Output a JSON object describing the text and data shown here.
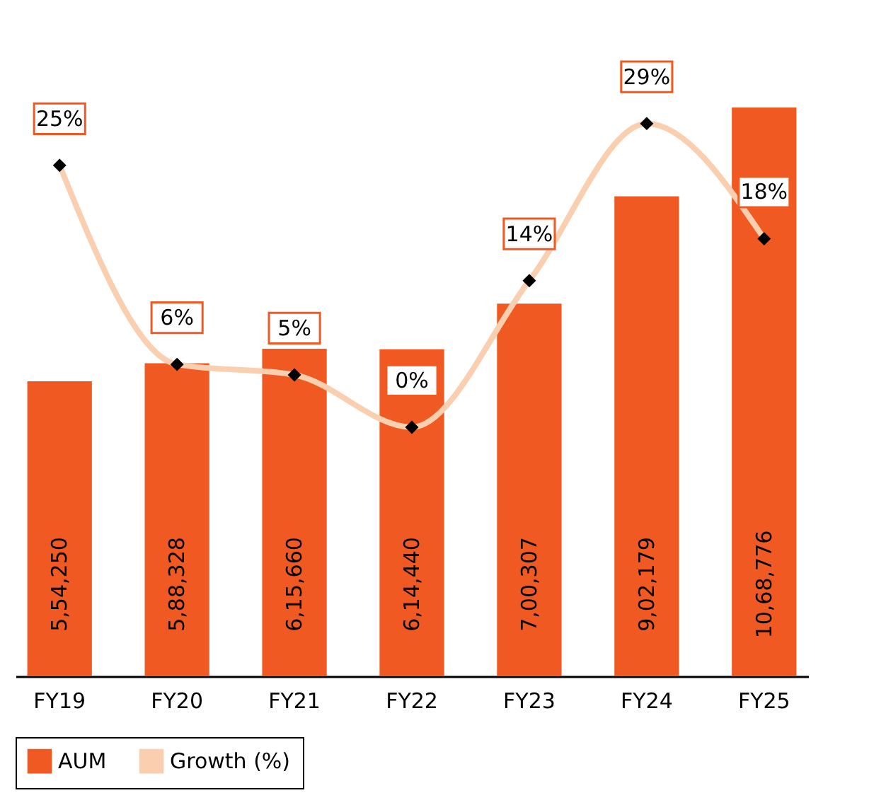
{
  "chart_data": {
    "type": "bar",
    "categories": [
      "FY19",
      "FY20",
      "FY21",
      "FY22",
      "FY23",
      "FY24",
      "FY25"
    ],
    "series": [
      {
        "name": "AUM",
        "color": "#f05a22",
        "values": [
          554250,
          588328,
          615660,
          614440,
          700307,
          902179,
          1068776
        ],
        "value_labels": [
          "5,54,250",
          "5,88,328",
          "6,15,660",
          "6,14,440",
          "7,00,307",
          "9,02,179",
          "10,68,776"
        ]
      },
      {
        "name": "Growth (%)",
        "type": "line",
        "axis": "y2",
        "color": "#f9cfb0",
        "marker": "diamond",
        "values": [
          25,
          6,
          5,
          0,
          14,
          29,
          18
        ],
        "value_labels": [
          "25%",
          "6%",
          "5%",
          "0%",
          "14%",
          "29%",
          "18%"
        ]
      }
    ],
    "legend": "bottom",
    "grid": false,
    "tick_labels": "x"
  }
}
